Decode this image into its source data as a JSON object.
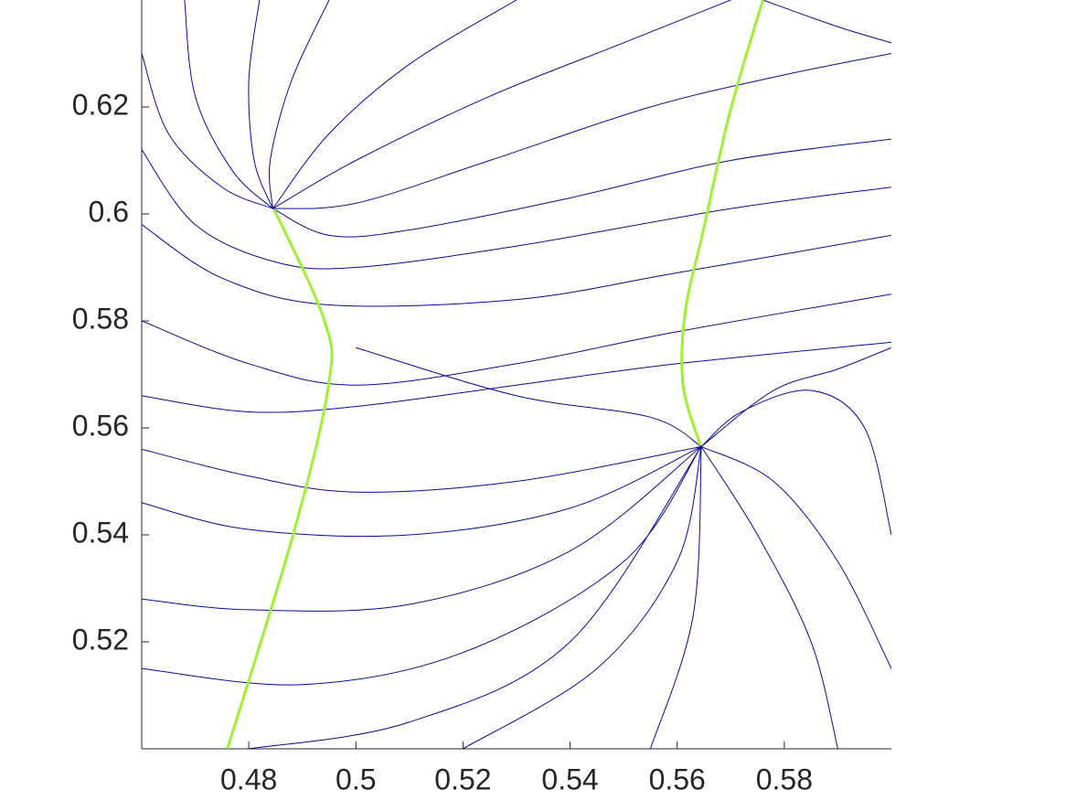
{
  "chart_data": {
    "type": "streamline",
    "xlim": [
      0.46,
      0.6
    ],
    "ylim": [
      0.5,
      0.64
    ],
    "xticks": [
      0.48,
      0.5,
      0.52,
      0.54,
      0.56,
      0.58
    ],
    "yticks": [
      0.52,
      0.54,
      0.56,
      0.58,
      0.6,
      0.62
    ],
    "series": [
      {
        "color": "#0b0b98",
        "x": [
          0.4845,
          0.495,
          0.51,
          0.53
        ],
        "y": [
          0.601,
          0.615,
          0.628,
          0.64
        ]
      },
      {
        "color": "#0b0b98",
        "x": [
          0.4845,
          0.5,
          0.525,
          0.55,
          0.57
        ],
        "y": [
          0.601,
          0.61,
          0.622,
          0.632,
          0.64
        ]
      },
      {
        "color": "#0b0b98",
        "x": [
          0.4845,
          0.5,
          0.525,
          0.555,
          0.58,
          0.6
        ],
        "y": [
          0.601,
          0.602,
          0.61,
          0.62,
          0.626,
          0.63
        ]
      },
      {
        "color": "#0b0b98",
        "x": [
          0.4845,
          0.495,
          0.51,
          0.54,
          0.57,
          0.6
        ],
        "y": [
          0.601,
          0.596,
          0.597,
          0.603,
          0.61,
          0.614
        ]
      },
      {
        "color": "#0b0b98",
        "x": [
          0.46,
          0.47,
          0.485,
          0.5,
          0.53,
          0.57,
          0.6
        ],
        "y": [
          0.612,
          0.598,
          0.591,
          0.59,
          0.594,
          0.601,
          0.605
        ]
      },
      {
        "color": "#0b0b98",
        "x": [
          0.46,
          0.475,
          0.495,
          0.53,
          0.56,
          0.6
        ],
        "y": [
          0.598,
          0.588,
          0.583,
          0.584,
          0.589,
          0.596
        ]
      },
      {
        "color": "#0b0b98",
        "x": [
          0.46,
          0.465,
          0.475,
          0.4845
        ],
        "y": [
          0.63,
          0.615,
          0.605,
          0.601
        ]
      },
      {
        "color": "#0b0b98",
        "x": [
          0.468,
          0.47,
          0.477,
          0.4845
        ],
        "y": [
          0.64,
          0.622,
          0.608,
          0.601
        ]
      },
      {
        "color": "#0b0b98",
        "x": [
          0.482,
          0.48,
          0.481,
          0.4845
        ],
        "y": [
          0.64,
          0.625,
          0.61,
          0.601
        ]
      },
      {
        "color": "#0b0b98",
        "x": [
          0.495,
          0.488,
          0.484,
          0.4845
        ],
        "y": [
          0.64,
          0.625,
          0.61,
          0.601
        ]
      },
      {
        "color": "#0b0b98",
        "x": [
          0.46,
          0.48,
          0.5,
          0.53,
          0.56,
          0.6
        ],
        "y": [
          0.58,
          0.572,
          0.568,
          0.572,
          0.578,
          0.585
        ]
      },
      {
        "color": "#0b0b98",
        "x": [
          0.46,
          0.48,
          0.5,
          0.53,
          0.56,
          0.6
        ],
        "y": [
          0.566,
          0.563,
          0.564,
          0.568,
          0.572,
          0.576
        ]
      },
      {
        "color": "#0b0b98",
        "x": [
          0.46,
          0.48,
          0.5,
          0.53,
          0.5645
        ],
        "y": [
          0.556,
          0.551,
          0.548,
          0.55,
          0.5565
        ]
      },
      {
        "color": "#0b0b98",
        "x": [
          0.46,
          0.48,
          0.51,
          0.54,
          0.5645
        ],
        "y": [
          0.546,
          0.541,
          0.54,
          0.545,
          0.5565
        ]
      },
      {
        "color": "#0b0b98",
        "x": [
          0.46,
          0.48,
          0.51,
          0.54,
          0.5645
        ],
        "y": [
          0.528,
          0.526,
          0.527,
          0.537,
          0.5565
        ]
      },
      {
        "color": "#0b0b98",
        "x": [
          0.46,
          0.49,
          0.52,
          0.55,
          0.5645
        ],
        "y": [
          0.515,
          0.512,
          0.518,
          0.535,
          0.5565
        ]
      },
      {
        "color": "#0b0b98",
        "x": [
          0.48,
          0.51,
          0.54,
          0.5645
        ],
        "y": [
          0.5,
          0.505,
          0.52,
          0.5565
        ]
      },
      {
        "color": "#0b0b98",
        "x": [
          0.52,
          0.545,
          0.56,
          0.5645
        ],
        "y": [
          0.5,
          0.515,
          0.535,
          0.5565
        ]
      },
      {
        "color": "#0b0b98",
        "x": [
          0.555,
          0.563,
          0.5645
        ],
        "y": [
          0.5,
          0.525,
          0.5565
        ]
      },
      {
        "color": "#0b0b98",
        "x": [
          0.59,
          0.585,
          0.575,
          0.5645
        ],
        "y": [
          0.5,
          0.52,
          0.54,
          0.5565
        ]
      },
      {
        "color": "#0b0b98",
        "x": [
          0.6,
          0.59,
          0.578,
          0.5645
        ],
        "y": [
          0.515,
          0.535,
          0.55,
          0.5565
        ]
      },
      {
        "color": "#0b0b98",
        "x": [
          0.6,
          0.595,
          0.585,
          0.572,
          0.5645
        ],
        "y": [
          0.54,
          0.56,
          0.567,
          0.563,
          0.5565
        ]
      },
      {
        "color": "#0b0b98",
        "x": [
          0.6,
          0.59,
          0.578,
          0.5645
        ],
        "y": [
          0.575,
          0.571,
          0.567,
          0.5565
        ]
      },
      {
        "color": "#0b0b98",
        "x": [
          0.5,
          0.53,
          0.555,
          0.5645
        ],
        "y": [
          0.575,
          0.566,
          0.562,
          0.5565
        ]
      },
      {
        "color": "#0b0b98",
        "x": [
          0.576,
          0.59,
          0.6
        ],
        "y": [
          0.64,
          0.635,
          0.632
        ]
      },
      {
        "color": "#9ef032",
        "x": [
          0.476,
          0.4883,
          0.4949,
          0.4941,
          0.4847,
          null,
          0.5643,
          0.5611,
          0.5615,
          0.5649,
          0.5699,
          0.576
        ],
        "y": [
          0.5,
          0.5401,
          0.568,
          0.5801,
          0.6009,
          null,
          0.5568,
          0.568,
          0.5817,
          0.597,
          0.6192,
          0.64
        ]
      }
    ]
  }
}
